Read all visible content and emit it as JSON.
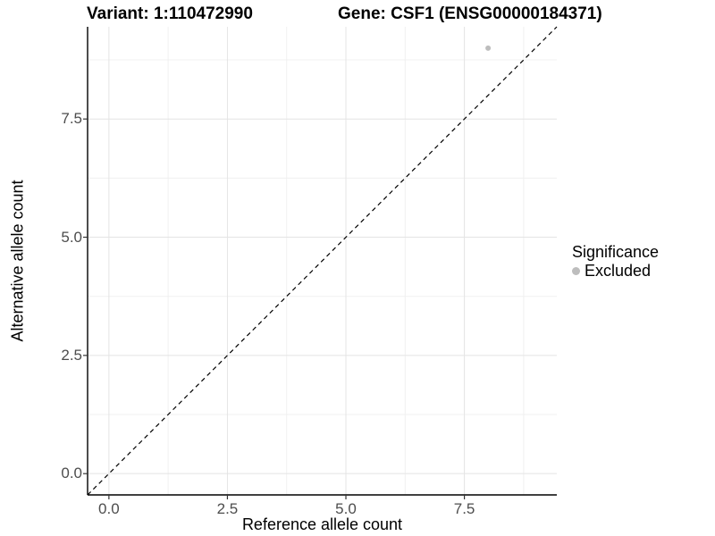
{
  "titles": {
    "variant": "Variant: 1:110472990",
    "gene": "Gene: CSF1 (ENSG00000184371)"
  },
  "axes": {
    "x": {
      "label": "Reference allele count"
    },
    "y": {
      "label": "Alternative allele count"
    }
  },
  "legend": {
    "title": "Significance",
    "items": [
      {
        "label": "Excluded",
        "color": "#bdbdbd"
      }
    ]
  },
  "chart_data": {
    "type": "scatter",
    "title": "Variant: 1:110472990    Gene: CSF1 (ENSG00000184371)",
    "xlabel": "Reference allele count",
    "ylabel": "Alternative allele count",
    "xlim": [
      -0.45,
      9.45
    ],
    "ylim": [
      -0.45,
      9.45
    ],
    "major_ticks": [
      0,
      2.5,
      5,
      7.5
    ],
    "minor_ticks": [
      1.25,
      3.75,
      6.25,
      8.75
    ],
    "tick_labels": [
      "0.0",
      "2.5",
      "5.0",
      "7.5"
    ],
    "grid": true,
    "legend_position": "right",
    "series": [
      {
        "name": "Excluded",
        "color": "#bdbdbd",
        "points": [
          {
            "x": 8,
            "y": 9
          }
        ]
      }
    ],
    "reference_line": {
      "type": "identity",
      "style": "dashed",
      "color": "#000000"
    },
    "colors": {
      "grid_major": "#e4e4e4",
      "grid_minor": "#f0f0f0",
      "axis_line": "#000000",
      "tick_mark": "#333333",
      "tick_text": "#4d4d4d"
    }
  }
}
